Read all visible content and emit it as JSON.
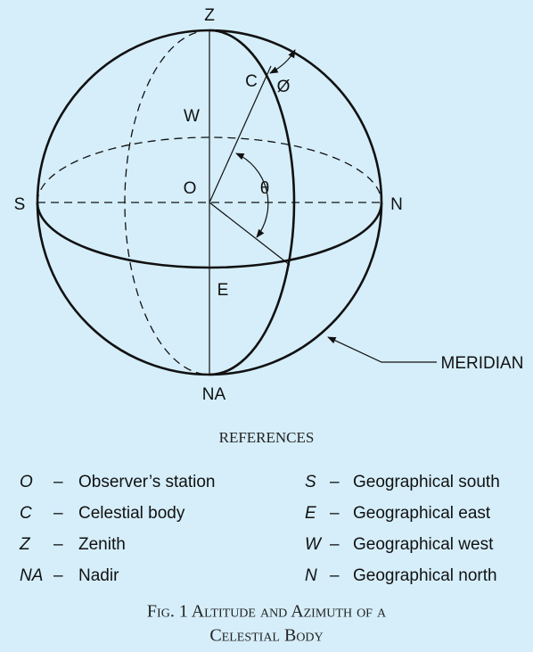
{
  "labels": {
    "zenith": "Z",
    "celestial": "C",
    "phi": "Ø",
    "west": "W",
    "observer": "O",
    "theta": "θ",
    "south": "S",
    "north": "N",
    "east": "E",
    "nadir": "NA",
    "meridian": "MERIDIAN"
  },
  "references": {
    "title": "REFERENCES",
    "rows": [
      [
        {
          "symbol": "O",
          "dash": "–",
          "text": "Observer’s station"
        },
        {
          "symbol": "S",
          "dash": "–",
          "text": "Geographical south"
        }
      ],
      [
        {
          "symbol": "C",
          "dash": "–",
          "text": "Celestial body"
        },
        {
          "symbol": "E",
          "dash": "–",
          "text": "Geographical east"
        }
      ],
      [
        {
          "symbol": "Z",
          "dash": "–",
          "text": "Zenith"
        },
        {
          "symbol": "W",
          "dash": "–",
          "text": "Geographical west"
        }
      ],
      [
        {
          "symbol": "NA",
          "dash": "–",
          "text": "Nadir"
        },
        {
          "symbol": "N",
          "dash": "–",
          "text": "Geographical north"
        }
      ]
    ]
  },
  "caption": {
    "line1": "Fig. 1  Altitude and Azimuth of a",
    "line2": "Celestial Body"
  }
}
